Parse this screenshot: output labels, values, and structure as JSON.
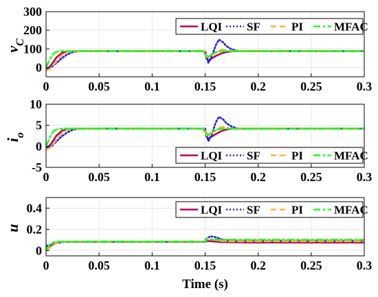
{
  "chart_data": [
    {
      "type": "line",
      "ylabel": "v",
      "ylabel_sub": "C",
      "xlim": [
        0,
        0.3
      ],
      "ylim": [
        -50,
        300
      ],
      "xticks": [
        "0",
        "0.05",
        "0.1",
        "0.15",
        "0.2",
        "0.25",
        "0.3"
      ],
      "yticks": [
        "0",
        "100",
        "200",
        "300"
      ],
      "grid": true,
      "legend_position": "top-right",
      "series": [
        {
          "name": "LQI",
          "x": [
            0,
            0.002,
            0.005,
            0.01,
            0.015,
            0.02,
            0.025,
            0.03,
            0.15,
            0.151,
            0.153,
            0.156,
            0.16,
            0.165,
            0.17,
            0.175,
            0.18,
            0.3
          ],
          "y": [
            -10,
            -5,
            15,
            55,
            78,
            86,
            88,
            88,
            88,
            50,
            38,
            48,
            62,
            75,
            83,
            87,
            88,
            88
          ]
        },
        {
          "name": "SF",
          "x": [
            0,
            0.003,
            0.006,
            0.01,
            0.015,
            0.02,
            0.025,
            0.03,
            0.035,
            0.15,
            0.151,
            0.153,
            0.156,
            0.16,
            0.163,
            0.167,
            0.17,
            0.175,
            0.18,
            0.185,
            0.3
          ],
          "y": [
            -5,
            -5,
            5,
            25,
            50,
            70,
            82,
            87,
            88,
            88,
            70,
            25,
            55,
            120,
            150,
            135,
            115,
            98,
            90,
            88,
            88
          ]
        },
        {
          "name": "PI",
          "x": [
            0,
            0.003,
            0.006,
            0.01,
            0.015,
            0.02,
            0.025,
            0.03,
            0.15,
            0.151,
            0.154,
            0.158,
            0.162,
            0.166,
            0.17,
            0.175,
            0.3
          ],
          "y": [
            -15,
            -10,
            5,
            35,
            65,
            82,
            87,
            88,
            88,
            60,
            58,
            72,
            88,
            96,
            92,
            89,
            88
          ]
        },
        {
          "name": "MFAC",
          "x": [
            0,
            0.002,
            0.005,
            0.008,
            0.012,
            0.016,
            0.02,
            0.03,
            0.148,
            0.15,
            0.151,
            0.153,
            0.156,
            0.16,
            0.165,
            0.3
          ],
          "y": [
            0,
            25,
            60,
            80,
            87,
            89,
            88,
            88,
            88,
            70,
            55,
            55,
            70,
            82,
            88,
            88
          ]
        }
      ]
    },
    {
      "type": "line",
      "ylabel": "i",
      "ylabel_sub": "o",
      "xlim": [
        0,
        0.3
      ],
      "ylim": [
        -5,
        10
      ],
      "xticks": [
        "0",
        "0.05",
        "0.1",
        "0.15",
        "0.2",
        "0.25",
        "0.3"
      ],
      "yticks": [
        "-5",
        "0",
        "5",
        "10"
      ],
      "grid": true,
      "legend_position": "bottom-right",
      "series": [
        {
          "name": "LQI",
          "x": [
            0,
            0.002,
            0.005,
            0.01,
            0.015,
            0.02,
            0.025,
            0.03,
            0.15,
            0.151,
            0.153,
            0.156,
            0.16,
            0.165,
            0.17,
            0.175,
            0.18,
            0.3
          ],
          "y": [
            -0.4,
            -0.2,
            0.7,
            2.6,
            3.7,
            4.1,
            4.2,
            4.2,
            4.2,
            2.4,
            1.8,
            2.3,
            2.9,
            3.6,
            4.0,
            4.15,
            4.2,
            4.2
          ]
        },
        {
          "name": "SF",
          "x": [
            0,
            0.003,
            0.006,
            0.01,
            0.015,
            0.02,
            0.025,
            0.03,
            0.035,
            0.15,
            0.151,
            0.153,
            0.156,
            0.16,
            0.163,
            0.167,
            0.17,
            0.175,
            0.18,
            0.185,
            0.3
          ],
          "y": [
            -0.2,
            -0.2,
            0.2,
            1.2,
            2.4,
            3.3,
            3.9,
            4.15,
            4.2,
            4.2,
            3.3,
            1.2,
            2.6,
            5.7,
            7.0,
            6.4,
            5.5,
            4.7,
            4.3,
            4.2,
            4.2
          ]
        },
        {
          "name": "PI",
          "x": [
            0,
            0.003,
            0.006,
            0.01,
            0.015,
            0.02,
            0.025,
            0.03,
            0.15,
            0.151,
            0.154,
            0.158,
            0.162,
            0.166,
            0.17,
            0.175,
            0.3
          ],
          "y": [
            -0.7,
            -0.5,
            0.2,
            1.7,
            3.1,
            3.9,
            4.15,
            4.2,
            4.2,
            2.9,
            2.8,
            3.4,
            4.2,
            4.6,
            4.4,
            4.25,
            4.2
          ]
        },
        {
          "name": "MFAC",
          "x": [
            0,
            0.002,
            0.005,
            0.008,
            0.012,
            0.016,
            0.02,
            0.03,
            0.148,
            0.15,
            0.151,
            0.153,
            0.156,
            0.16,
            0.165,
            0.3
          ],
          "y": [
            0,
            1.2,
            2.9,
            3.8,
            4.15,
            4.25,
            4.2,
            4.2,
            4.2,
            3.3,
            2.6,
            2.6,
            3.3,
            3.9,
            4.2,
            4.2
          ]
        }
      ]
    },
    {
      "type": "line",
      "xlabel": "Time (s)",
      "ylabel": "u",
      "xlim": [
        0,
        0.3
      ],
      "ylim": [
        -0.05,
        0.5
      ],
      "xticks": [
        "0",
        "0.05",
        "0.1",
        "0.15",
        "0.2",
        "0.25",
        "0.3"
      ],
      "yticks": [
        "0",
        "0.2",
        "0.4"
      ],
      "grid": true,
      "legend_position": "top-right",
      "series": [
        {
          "name": "LQI",
          "x": [
            0,
            0.005,
            0.01,
            0.015,
            0.02,
            0.15,
            0.152,
            0.158,
            0.165,
            0.175,
            0.19,
            0.3
          ],
          "y": [
            0.03,
            0.05,
            0.07,
            0.08,
            0.082,
            0.082,
            0.09,
            0.085,
            0.08,
            0.078,
            0.076,
            0.076
          ]
        },
        {
          "name": "SF",
          "x": [
            0,
            0.005,
            0.01,
            0.015,
            0.02,
            0.15,
            0.151,
            0.155,
            0.16,
            0.165,
            0.17,
            0.175,
            0.18,
            0.3
          ],
          "y": [
            0.045,
            0.055,
            0.07,
            0.08,
            0.083,
            0.083,
            0.11,
            0.135,
            0.125,
            0.108,
            0.098,
            0.093,
            0.092,
            0.092
          ]
        },
        {
          "name": "PI",
          "x": [
            0,
            0.004,
            0.008,
            0.012,
            0.016,
            0.02,
            0.15,
            0.152,
            0.156,
            0.16,
            0.165,
            0.17,
            0.175,
            0.3
          ],
          "y": [
            0.0,
            0.03,
            0.06,
            0.075,
            0.082,
            0.083,
            0.083,
            0.115,
            0.108,
            0.097,
            0.09,
            0.088,
            0.087,
            0.087
          ]
        },
        {
          "name": "MFAC",
          "x": [
            0,
            0.003,
            0.006,
            0.01,
            0.015,
            0.02,
            0.15,
            0.151,
            0.155,
            0.16,
            0.165,
            0.3
          ],
          "y": [
            0.01,
            0.05,
            0.075,
            0.083,
            0.085,
            0.085,
            0.085,
            0.1,
            0.105,
            0.103,
            0.102,
            0.102
          ]
        }
      ]
    }
  ],
  "colors": {
    "LQI": "#b5005a",
    "SF": "#1a1aff",
    "PI": "#ffb033",
    "MFAC": "#1aff1a"
  },
  "dash": {
    "LQI": "solid",
    "SF": "dotted",
    "PI": "dashed",
    "MFAC": "dash-dot"
  }
}
